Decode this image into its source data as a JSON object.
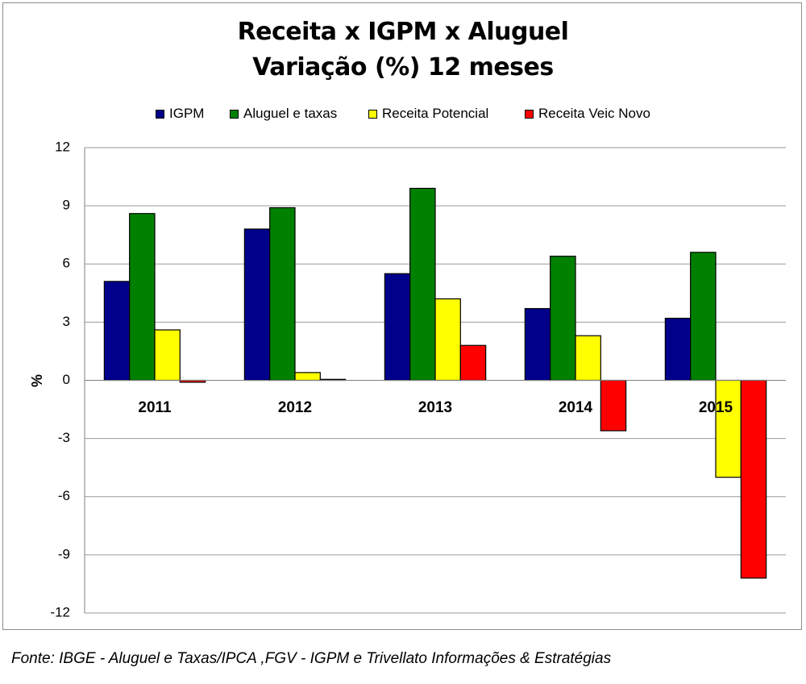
{
  "chart_data": {
    "type": "bar",
    "title": "Receita x IGPM x Aluguel",
    "subtitle": "Variação (%) 12 meses",
    "ylabel": "%",
    "xlabel": "",
    "categories": [
      "2011",
      "2012",
      "2013",
      "2014",
      "2015"
    ],
    "series": [
      {
        "name": "IGPM",
        "color": "#00008b",
        "values": [
          5.1,
          7.8,
          5.5,
          3.7,
          3.2
        ]
      },
      {
        "name": "Aluguel e taxas",
        "color": "#008000",
        "values": [
          8.6,
          8.9,
          9.9,
          6.4,
          6.6
        ]
      },
      {
        "name": "Receita Potencial",
        "color": "#ffff00",
        "values": [
          2.6,
          0.4,
          4.2,
          2.3,
          -5.0
        ]
      },
      {
        "name": "Receita Veic Novo",
        "color": "#ff0000",
        "values": [
          -0.1,
          0.05,
          1.8,
          -2.6,
          -10.2
        ]
      }
    ],
    "ylim": [
      -12,
      12
    ],
    "yticks": [
      12,
      9,
      6,
      3,
      0,
      -3,
      -6,
      -9,
      -12
    ],
    "grid": true,
    "legend_position": "top"
  },
  "source": "Fonte: IBGE  - Aluguel e Taxas/IPCA ,FGV - IGPM e  Trivellato Informações & Estratégias"
}
